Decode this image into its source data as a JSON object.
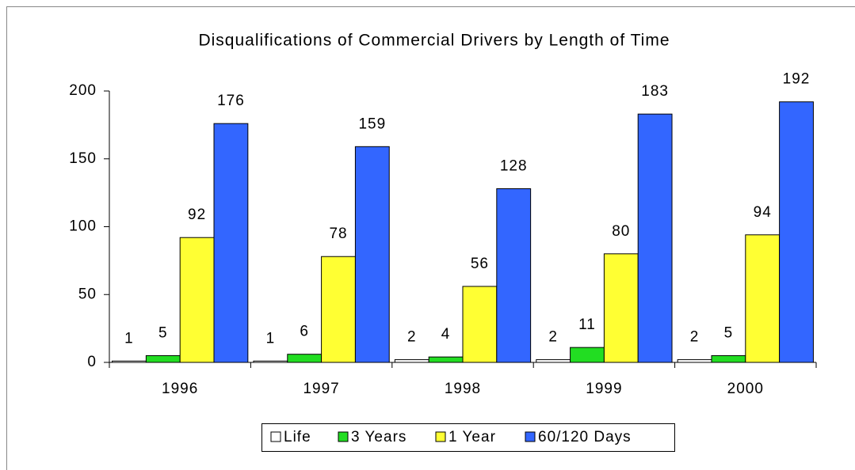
{
  "chart_data": {
    "type": "bar",
    "title": "Disqualifications of Commercial Drivers by Length of Time",
    "categories": [
      "1996",
      "1997",
      "1998",
      "1999",
      "2000"
    ],
    "series": [
      {
        "name": "Life",
        "color": "#ffffff",
        "values": [
          1,
          1,
          2,
          2,
          2
        ]
      },
      {
        "name": "3 Years",
        "color": "#22dd22",
        "values": [
          5,
          6,
          4,
          11,
          5
        ]
      },
      {
        "name": "1 Year",
        "color": "#ffff33",
        "values": [
          92,
          78,
          56,
          80,
          94
        ]
      },
      {
        "name": "60/120 Days",
        "color": "#3366ff",
        "values": [
          176,
          159,
          128,
          183,
          192
        ]
      }
    ],
    "ylim": [
      0,
      200
    ],
    "yticks": [
      0,
      50,
      100,
      150,
      200
    ],
    "grid": false,
    "legend": "bottom"
  }
}
